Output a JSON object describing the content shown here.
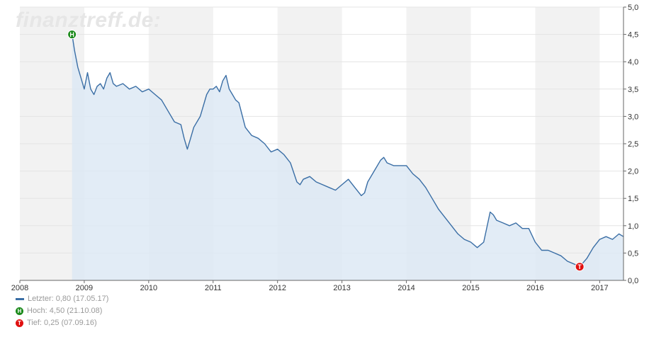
{
  "watermark": "finanztreff.de:",
  "legend": {
    "last": "Letzter: 0,80 (17.05.17)",
    "high": "Hoch: 4,50 (21.10.08)",
    "low": "Tief: 0,25 (07.09.16)",
    "high_marker": "H",
    "low_marker": "T"
  },
  "colors": {
    "line": "#3a6ea5",
    "fill": "#dde9f5",
    "high": "#1a8a1a",
    "low": "#e01010",
    "band": "#f2f2f2",
    "grid": "#e4e4e4"
  },
  "chart_data": {
    "type": "area",
    "x_labels": [
      "2008",
      "2009",
      "2010",
      "2011",
      "2012",
      "2013",
      "2014",
      "2015",
      "2016",
      "2017"
    ],
    "y_ticks": [
      "0,0",
      "0,5",
      "1,0",
      "1,5",
      "2,0",
      "2,5",
      "3,0",
      "3,5",
      "4,0",
      "4,5",
      "5,0"
    ],
    "ylim": [
      0,
      5
    ],
    "xlim": [
      2008.0,
      2017.37
    ],
    "series": [
      {
        "x": [
          2008.81,
          2008.85,
          2008.9,
          2008.95,
          2009.0,
          2009.05,
          2009.1,
          2009.15,
          2009.2,
          2009.25,
          2009.3,
          2009.35,
          2009.4,
          2009.45,
          2009.5,
          2009.6,
          2009.7,
          2009.8,
          2009.9,
          2010.0,
          2010.1,
          2010.2,
          2010.3,
          2010.4,
          2010.5,
          2010.55,
          2010.6,
          2010.65,
          2010.7,
          2010.8,
          2010.9,
          2010.95,
          2011.0,
          2011.05,
          2011.1,
          2011.15,
          2011.2,
          2011.25,
          2011.3,
          2011.35,
          2011.4,
          2011.5,
          2011.6,
          2011.7,
          2011.8,
          2011.9,
          2012.0,
          2012.1,
          2012.2,
          2012.3,
          2012.35,
          2012.4,
          2012.5,
          2012.6,
          2012.7,
          2012.8,
          2012.9,
          2013.0,
          2013.1,
          2013.2,
          2013.3,
          2013.35,
          2013.4,
          2013.5,
          2013.6,
          2013.65,
          2013.7,
          2013.8,
          2013.9,
          2014.0,
          2014.1,
          2014.2,
          2014.3,
          2014.4,
          2014.5,
          2014.6,
          2014.7,
          2014.8,
          2014.9,
          2015.0,
          2015.1,
          2015.2,
          2015.3,
          2015.35,
          2015.4,
          2015.5,
          2015.6,
          2015.7,
          2015.8,
          2015.9,
          2016.0,
          2016.1,
          2016.2,
          2016.3,
          2016.4,
          2016.5,
          2016.6,
          2016.69,
          2016.8,
          2016.9,
          2017.0,
          2017.1,
          2017.2,
          2017.3,
          2017.37
        ],
        "y": [
          4.5,
          4.2,
          3.9,
          3.7,
          3.5,
          3.8,
          3.5,
          3.4,
          3.55,
          3.6,
          3.5,
          3.7,
          3.8,
          3.6,
          3.55,
          3.6,
          3.5,
          3.55,
          3.45,
          3.5,
          3.4,
          3.3,
          3.1,
          2.9,
          2.85,
          2.6,
          2.4,
          2.6,
          2.8,
          3.0,
          3.4,
          3.5,
          3.5,
          3.55,
          3.45,
          3.65,
          3.75,
          3.5,
          3.4,
          3.3,
          3.25,
          2.8,
          2.65,
          2.6,
          2.5,
          2.35,
          2.4,
          2.3,
          2.15,
          1.8,
          1.75,
          1.85,
          1.9,
          1.8,
          1.75,
          1.7,
          1.65,
          1.75,
          1.85,
          1.7,
          1.55,
          1.6,
          1.8,
          2.0,
          2.2,
          2.25,
          2.15,
          2.1,
          2.1,
          2.1,
          1.95,
          1.85,
          1.7,
          1.5,
          1.3,
          1.15,
          1.0,
          0.85,
          0.75,
          0.7,
          0.6,
          0.7,
          1.25,
          1.2,
          1.1,
          1.05,
          1.0,
          1.05,
          0.95,
          0.95,
          0.7,
          0.55,
          0.55,
          0.5,
          0.45,
          0.35,
          0.3,
          0.25,
          0.4,
          0.6,
          0.75,
          0.8,
          0.75,
          0.85,
          0.8
        ]
      }
    ],
    "high": {
      "x": 2008.81,
      "y": 4.5
    },
    "low": {
      "x": 2016.69,
      "y": 0.25
    }
  }
}
